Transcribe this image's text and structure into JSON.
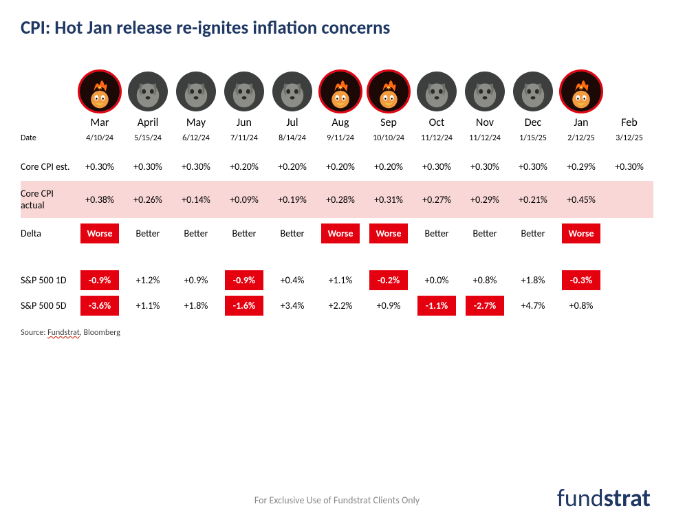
{
  "title": "CPI: Hot Jan release re-ignites inflation concerns",
  "colors": {
    "title": "#1f3863",
    "hot_ring": "#e3000f",
    "actual_row_bg": "#f8d7d6",
    "neg_bg": "#e5000f",
    "neg_fg": "#ffffff",
    "text": "#000000"
  },
  "labels": {
    "date": "Date",
    "est": "Core CPI est.",
    "actual": "Core CPI actual",
    "delta": "Delta",
    "sp1d": "S&P 500 1D",
    "sp5d": "S&P 500 5D",
    "worse": "Worse",
    "better": "Better"
  },
  "months": [
    {
      "m": "Mar",
      "date": "4/10/24",
      "est": "+0.30%",
      "actual": "+0.38%",
      "delta": "Worse",
      "hot": true,
      "sp1d": "-0.9%",
      "sp1d_neg": true,
      "sp5d": "-3.6%",
      "sp5d_neg": true
    },
    {
      "m": "April",
      "date": "5/15/24",
      "est": "+0.30%",
      "actual": "+0.26%",
      "delta": "Better",
      "hot": false,
      "sp1d": "+1.2%",
      "sp1d_neg": false,
      "sp5d": "+1.1%",
      "sp5d_neg": false
    },
    {
      "m": "May",
      "date": "6/12/24",
      "est": "+0.30%",
      "actual": "+0.14%",
      "delta": "Better",
      "hot": false,
      "sp1d": "+0.9%",
      "sp1d_neg": false,
      "sp5d": "+1.8%",
      "sp5d_neg": false
    },
    {
      "m": "Jun",
      "date": "7/11/24",
      "est": "+0.20%",
      "actual": "+0.09%",
      "delta": "Better",
      "hot": false,
      "sp1d": "-0.9%",
      "sp1d_neg": true,
      "sp5d": "-1.6%",
      "sp5d_neg": true
    },
    {
      "m": "Jul",
      "date": "8/14/24",
      "est": "+0.20%",
      "actual": "+0.19%",
      "delta": "Better",
      "hot": false,
      "sp1d": "+0.4%",
      "sp1d_neg": false,
      "sp5d": "+3.4%",
      "sp5d_neg": false
    },
    {
      "m": "Aug",
      "date": "9/11/24",
      "est": "+0.20%",
      "actual": "+0.28%",
      "delta": "Worse",
      "hot": true,
      "sp1d": "+1.1%",
      "sp1d_neg": false,
      "sp5d": "+2.2%",
      "sp5d_neg": false
    },
    {
      "m": "Sep",
      "date": "10/10/24",
      "est": "+0.20%",
      "actual": "+0.31%",
      "delta": "Worse",
      "hot": true,
      "sp1d": "-0.2%",
      "sp1d_neg": true,
      "sp5d": "+0.9%",
      "sp5d_neg": false
    },
    {
      "m": "Oct",
      "date": "11/12/24",
      "est": "+0.30%",
      "actual": "+0.27%",
      "delta": "Better",
      "hot": false,
      "sp1d": "+0.0%",
      "sp1d_neg": false,
      "sp5d": "-1.1%",
      "sp5d_neg": true
    },
    {
      "m": "Nov",
      "date": "11/12/24",
      "est": "+0.30%",
      "actual": "+0.29%",
      "delta": "Better",
      "hot": false,
      "sp1d": "+0.8%",
      "sp1d_neg": false,
      "sp5d": "-2.7%",
      "sp5d_neg": true
    },
    {
      "m": "Dec",
      "date": "1/15/25",
      "est": "+0.30%",
      "actual": "+0.21%",
      "delta": "Better",
      "hot": false,
      "sp1d": "+1.8%",
      "sp1d_neg": false,
      "sp5d": "+4.7%",
      "sp5d_neg": false
    },
    {
      "m": "Jan",
      "date": "2/12/25",
      "est": "+0.29%",
      "actual": "+0.45%",
      "delta": "Worse",
      "hot": true,
      "sp1d": "-0.3%",
      "sp1d_neg": true,
      "sp5d": "+0.8%",
      "sp5d_neg": false
    },
    {
      "m": "Feb",
      "date": "3/12/25",
      "est": "+0.30%",
      "actual": "",
      "delta": "",
      "hot": false,
      "sp1d": "",
      "sp1d_neg": false,
      "sp5d": "",
      "sp5d_neg": false
    }
  ],
  "source": {
    "prefix": "Source: ",
    "company": "Fundstrat",
    "suffix": ", Bloomberg"
  },
  "footer": "For Exclusive Use of Fundstrat Clients Only",
  "brand": {
    "thin": "fund",
    "bold": "strat"
  }
}
